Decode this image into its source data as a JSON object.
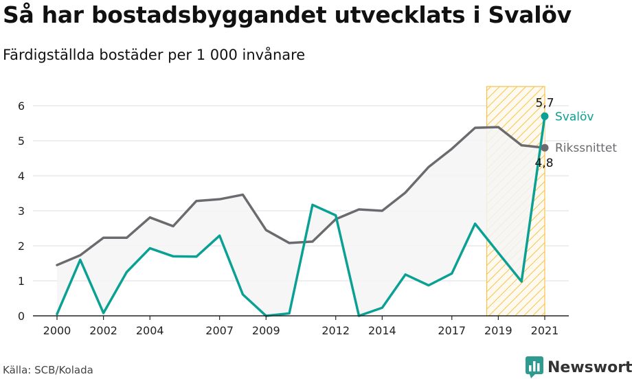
{
  "title": "Så har bostadsbyggandet utvecklats i Svalöv",
  "subtitle": "Färdigställda bostäder per 1 000 invånare",
  "source": "Källa: SCB/Kolada",
  "brand": {
    "name": "Newsworthy",
    "icon": "newsworthy-chart-logo-icon"
  },
  "colors": {
    "svalov": "#0aa094",
    "riket": "#6b6b6f",
    "fill": "#f4f4f4",
    "highlight": "#f7c24a",
    "grid": "#dddddd"
  },
  "chart_data": {
    "type": "line",
    "x": [
      2000,
      2001,
      2002,
      2003,
      2004,
      2005,
      2006,
      2007,
      2008,
      2009,
      2010,
      2011,
      2012,
      2013,
      2014,
      2015,
      2016,
      2017,
      2018,
      2019,
      2020,
      2021
    ],
    "series": [
      {
        "name": "Svalöv",
        "values": [
          0.05,
          1.6,
          0.08,
          1.25,
          1.93,
          1.7,
          1.69,
          2.29,
          0.61,
          0.0,
          0.07,
          3.17,
          2.87,
          0.0,
          0.23,
          1.18,
          0.87,
          1.21,
          2.63,
          1.8,
          0.98,
          5.7
        ]
      },
      {
        "name": "Rikssnittet",
        "values": [
          1.45,
          1.73,
          2.23,
          2.23,
          2.81,
          2.56,
          3.28,
          3.33,
          3.46,
          2.45,
          2.08,
          2.12,
          2.76,
          3.04,
          3.0,
          3.52,
          4.25,
          4.77,
          5.37,
          5.39,
          4.87,
          4.8
        ]
      }
    ],
    "x_ticks": [
      "2000",
      "2002",
      "2004",
      "2007",
      "2009",
      "2012",
      "2014",
      "2017",
      "2019",
      "2021"
    ],
    "y_ticks": [
      "0",
      "1",
      "2",
      "3",
      "4",
      "5",
      "6"
    ],
    "ylim": [
      0,
      6
    ],
    "grid": "horizontal",
    "highlight_range": [
      2018.5,
      2021
    ],
    "end_labels": {
      "svalov_value": "5,7",
      "riket_value": "4,8",
      "svalov_name": "Svalöv",
      "riket_name": "Rikssnittet"
    }
  }
}
